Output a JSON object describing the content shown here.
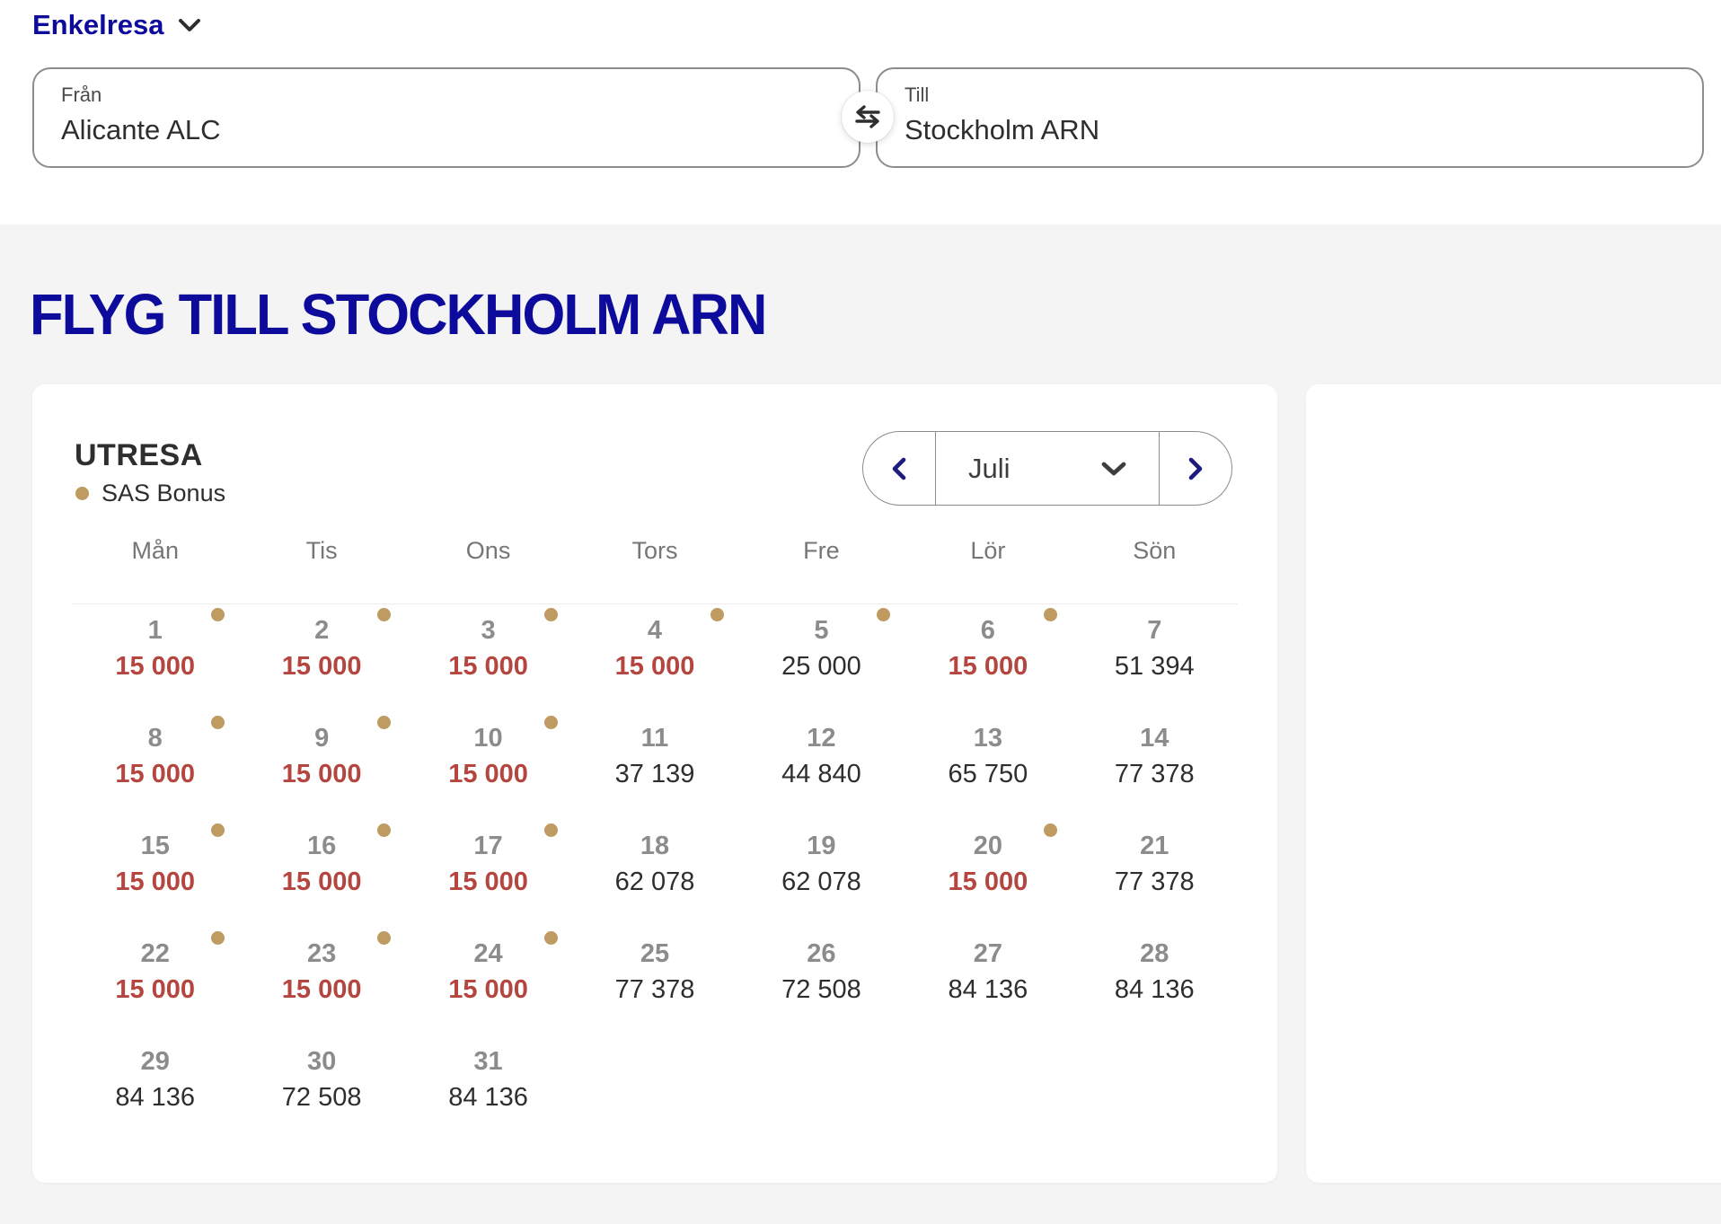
{
  "colors": {
    "brand_blue": "#0d0b9b",
    "price_highlight_red": "#b5453f",
    "price_regular_dark": "#2e2e2e",
    "bonus_gold": "#bf9b61",
    "background_gray": "#f4f4f4"
  },
  "trip_type": {
    "label": "Enkelresa"
  },
  "search": {
    "from": {
      "label": "Från",
      "value": "Alicante ALC"
    },
    "to": {
      "label": "Till",
      "value": "Stockholm ARN"
    },
    "swap_icon": "swap-horizontal-icon"
  },
  "heading": "FLYG TILL STOCKHOLM ARN",
  "calendar": {
    "title": "UTRESA",
    "legend": {
      "label": "SAS Bonus",
      "icon": "bonus-dot-icon"
    },
    "month": {
      "selected": "Juli",
      "prev_icon": "chevron-left-icon",
      "next_icon": "chevron-right-icon",
      "dropdown_icon": "chevron-down-icon"
    },
    "day_headers": [
      "Mån",
      "Tis",
      "Ons",
      "Tors",
      "Fre",
      "Lör",
      "Sön"
    ],
    "weeks": [
      [
        {
          "date": "1",
          "price": "15 000",
          "bonus": true,
          "dot": true
        },
        {
          "date": "2",
          "price": "15 000",
          "bonus": true,
          "dot": true
        },
        {
          "date": "3",
          "price": "15 000",
          "bonus": true,
          "dot": true
        },
        {
          "date": "4",
          "price": "15 000",
          "bonus": true,
          "dot": true
        },
        {
          "date": "5",
          "price": "25 000",
          "bonus": false,
          "dot": true
        },
        {
          "date": "6",
          "price": "15 000",
          "bonus": true,
          "dot": true
        },
        {
          "date": "7",
          "price": "51 394",
          "bonus": false,
          "dot": false
        }
      ],
      [
        {
          "date": "8",
          "price": "15 000",
          "bonus": true,
          "dot": true
        },
        {
          "date": "9",
          "price": "15 000",
          "bonus": true,
          "dot": true
        },
        {
          "date": "10",
          "price": "15 000",
          "bonus": true,
          "dot": true
        },
        {
          "date": "11",
          "price": "37 139",
          "bonus": false,
          "dot": false
        },
        {
          "date": "12",
          "price": "44 840",
          "bonus": false,
          "dot": false
        },
        {
          "date": "13",
          "price": "65 750",
          "bonus": false,
          "dot": false
        },
        {
          "date": "14",
          "price": "77 378",
          "bonus": false,
          "dot": false
        }
      ],
      [
        {
          "date": "15",
          "price": "15 000",
          "bonus": true,
          "dot": true
        },
        {
          "date": "16",
          "price": "15 000",
          "bonus": true,
          "dot": true
        },
        {
          "date": "17",
          "price": "15 000",
          "bonus": true,
          "dot": true
        },
        {
          "date": "18",
          "price": "62 078",
          "bonus": false,
          "dot": false
        },
        {
          "date": "19",
          "price": "62 078",
          "bonus": false,
          "dot": false
        },
        {
          "date": "20",
          "price": "15 000",
          "bonus": true,
          "dot": true
        },
        {
          "date": "21",
          "price": "77 378",
          "bonus": false,
          "dot": false
        }
      ],
      [
        {
          "date": "22",
          "price": "15 000",
          "bonus": true,
          "dot": true
        },
        {
          "date": "23",
          "price": "15 000",
          "bonus": true,
          "dot": true
        },
        {
          "date": "24",
          "price": "15 000",
          "bonus": true,
          "dot": true
        },
        {
          "date": "25",
          "price": "77 378",
          "bonus": false,
          "dot": false
        },
        {
          "date": "26",
          "price": "72 508",
          "bonus": false,
          "dot": false
        },
        {
          "date": "27",
          "price": "84 136",
          "bonus": false,
          "dot": false
        },
        {
          "date": "28",
          "price": "84 136",
          "bonus": false,
          "dot": false
        }
      ],
      [
        {
          "date": "29",
          "price": "84 136",
          "bonus": false,
          "dot": false
        },
        {
          "date": "30",
          "price": "72 508",
          "bonus": false,
          "dot": false
        },
        {
          "date": "31",
          "price": "84 136",
          "bonus": false,
          "dot": false
        },
        null,
        null,
        null,
        null
      ]
    ]
  }
}
